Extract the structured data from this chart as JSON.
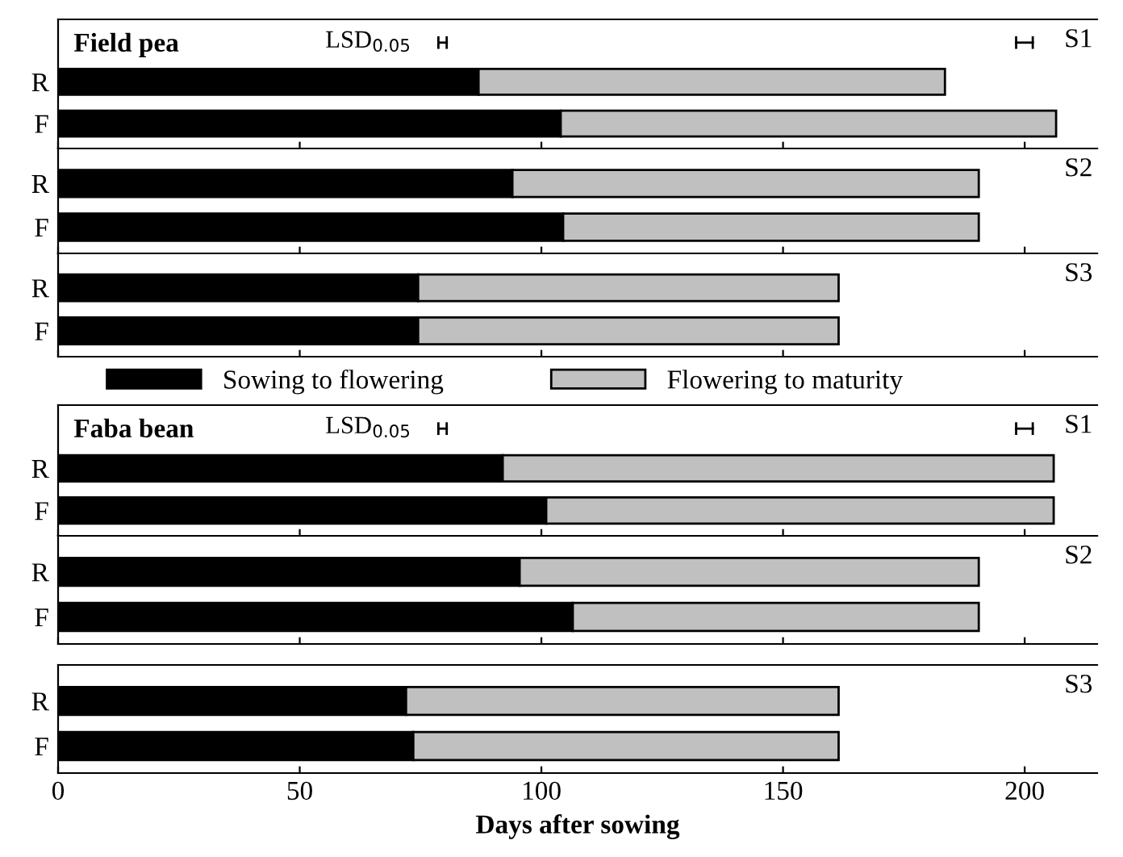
{
  "chart_data": [
    {
      "type": "bar",
      "orientation": "horizontal",
      "stacked": true,
      "title": "Field pea",
      "categories": [
        "R",
        "F"
      ],
      "xlim": [
        0,
        215
      ],
      "xticks": [
        0,
        50,
        100,
        150,
        200
      ],
      "tick_labels": "y",
      "annotations": [
        "S1",
        "LSD$_{0.05}$"
      ],
      "series": [
        {
          "color": "#000000",
          "values": [
            87,
            104
          ]
        },
        {
          "color": "#c0c0c0",
          "values": [
            96.5,
            102.5
          ]
        }
      ]
    },
    {
      "type": "bar",
      "orientation": "horizontal",
      "stacked": true,
      "categories": [
        "R",
        "F"
      ],
      "xlim": [
        0,
        215
      ],
      "xticks": [
        0,
        50,
        100,
        150,
        200
      ],
      "tick_labels": "y",
      "annotations": [
        "S2"
      ],
      "series": [
        {
          "color": "#000000",
          "values": [
            94,
            104.5
          ]
        },
        {
          "color": "#c0c0c0",
          "values": [
            96.5,
            86
          ]
        }
      ]
    },
    {
      "type": "bar",
      "orientation": "horizontal",
      "stacked": true,
      "categories": [
        "R",
        "F"
      ],
      "xlim": [
        0,
        215
      ],
      "xticks": [
        0,
        50,
        100,
        150,
        200
      ],
      "tick_labels": "y",
      "annotations": [
        "S3"
      ],
      "legend": "bottom",
      "series": [
        {
          "name": "Sowing to flowering",
          "color": "#000000",
          "values": [
            74.5,
            74.5
          ]
        },
        {
          "name": "Flowering to maturity",
          "color": "#c0c0c0",
          "values": [
            87,
            87
          ]
        }
      ]
    },
    {
      "type": "bar",
      "orientation": "horizontal",
      "stacked": true,
      "title": "Faba bean",
      "categories": [
        "R",
        "F"
      ],
      "xlim": [
        0,
        215
      ],
      "xticks": [
        0,
        50,
        100,
        150,
        200
      ],
      "tick_labels": "y",
      "annotations": [
        "S1",
        "LSD$_{0.05}$"
      ],
      "series": [
        {
          "color": "#000000",
          "values": [
            92,
            101
          ]
        },
        {
          "color": "#c0c0c0",
          "values": [
            114,
            105
          ]
        }
      ]
    },
    {
      "type": "bar",
      "orientation": "horizontal",
      "stacked": true,
      "categories": [
        "R",
        "F"
      ],
      "xlim": [
        0,
        215
      ],
      "xticks": [
        0,
        50,
        100,
        150,
        200
      ],
      "tick_labels": "y",
      "annotations": [
        "S2"
      ],
      "series": [
        {
          "color": "#000000",
          "values": [
            95.5,
            106.5
          ]
        },
        {
          "color": "#c0c0c0",
          "values": [
            95,
            84
          ]
        }
      ]
    },
    {
      "type": "bar",
      "orientation": "horizontal",
      "stacked": true,
      "categories": [
        "R",
        "F"
      ],
      "xlim": [
        0,
        215
      ],
      "xticks": [
        0,
        50,
        100,
        150,
        200
      ],
      "xlabel": "Days after sowing",
      "annotations": [
        "S3"
      ],
      "series": [
        {
          "color": "#000000",
          "values": [
            72,
            73.5
          ]
        },
        {
          "color": "#c0c0c0",
          "values": [
            89.5,
            88
          ]
        }
      ]
    }
  ]
}
